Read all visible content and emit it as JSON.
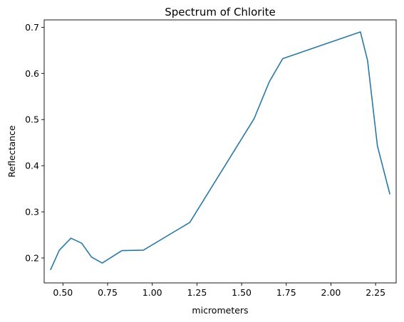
{
  "chart_data": {
    "type": "line",
    "title": "Spectrum of Chlorite",
    "xlabel": "micrometers",
    "ylabel": "Reflectance",
    "xlim": [
      0.395,
      2.365
    ],
    "ylim": [
      0.146,
      0.716
    ],
    "xticks": [
      0.5,
      0.75,
      1.0,
      1.25,
      1.5,
      1.75,
      2.0,
      2.25
    ],
    "xtick_labels": [
      "0.50",
      "0.75",
      "1.00",
      "1.25",
      "1.50",
      "1.75",
      "2.00",
      "2.25"
    ],
    "yticks": [
      0.2,
      0.3,
      0.4,
      0.5,
      0.6,
      0.7
    ],
    "ytick_labels": [
      "0.2",
      "0.3",
      "0.4",
      "0.5",
      "0.6",
      "0.7"
    ],
    "grid": false,
    "line_color": "#2878a8",
    "series": [
      {
        "x": [
          0.43,
          0.48,
          0.545,
          0.605,
          0.66,
          0.72,
          0.83,
          0.95,
          1.21,
          1.57,
          1.655,
          1.73,
          2.165,
          2.205,
          2.26,
          2.33
        ],
        "y": [
          0.174,
          0.217,
          0.243,
          0.232,
          0.202,
          0.189,
          0.216,
          0.217,
          0.277,
          0.502,
          0.582,
          0.632,
          0.69,
          0.628,
          0.443,
          0.338
        ]
      }
    ]
  }
}
